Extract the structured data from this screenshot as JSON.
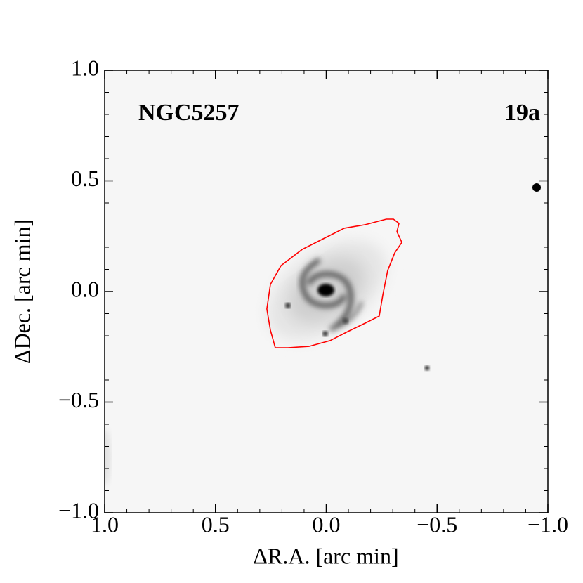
{
  "chart_data": {
    "type": "image",
    "annotations": [
      "NGC5257",
      "19a"
    ],
    "xlabel": "ΔR.A. [arc min]",
    "ylabel": "ΔDec. [arc min]",
    "xlim": [
      1.0,
      -1.0
    ],
    "ylim": [
      -1.0,
      1.0
    ],
    "xticks": [
      {
        "value": 1.0,
        "label": "1.0"
      },
      {
        "value": 0.5,
        "label": "0.5"
      },
      {
        "value": 0.0,
        "label": "0.0"
      },
      {
        "value": -0.5,
        "label": "−0.5"
      },
      {
        "value": -1.0,
        "label": "−1.0"
      }
    ],
    "yticks": [
      {
        "value": -1.0,
        "label": "−1.0"
      },
      {
        "value": -0.5,
        "label": "−0.5"
      },
      {
        "value": 0.0,
        "label": "0.0"
      },
      {
        "value": 0.5,
        "label": "0.5"
      },
      {
        "value": 1.0,
        "label": "1.0"
      }
    ],
    "minor_tick_step": 0.1,
    "contour": {
      "color": "#ff0000",
      "x": [
        0.23,
        0.252,
        0.268,
        0.252,
        0.204,
        0.109,
        0.014,
        -0.081,
        -0.176,
        -0.271,
        -0.303,
        -0.328,
        -0.319,
        -0.341,
        -0.309,
        -0.277,
        -0.255,
        -0.239,
        -0.176,
        -0.097,
        -0.017,
        0.078,
        0.173,
        0.23
      ],
      "y": [
        -0.254,
        -0.175,
        -0.079,
        0.032,
        0.117,
        0.19,
        0.238,
        0.286,
        0.302,
        0.327,
        0.327,
        0.308,
        0.27,
        0.222,
        0.175,
        0.095,
        -0.016,
        -0.111,
        -0.143,
        -0.181,
        -0.222,
        -0.248,
        -0.254,
        -0.254
      ]
    }
  }
}
